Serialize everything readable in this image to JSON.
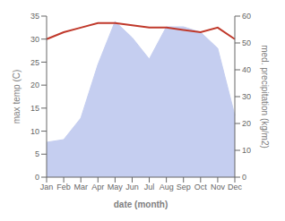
{
  "chart_data": {
    "type": "line",
    "xlabel": "date (month)",
    "ylabel": "max temp (C)",
    "y2label": "med. precipitation (kg/m2)",
    "categories": [
      "Jan",
      "Feb",
      "Mar",
      "Apr",
      "May",
      "Jun",
      "Jul",
      "Aug",
      "Sep",
      "Oct",
      "Nov",
      "Dec"
    ],
    "ylim": [
      0,
      35
    ],
    "yticks": [
      0,
      5,
      10,
      15,
      20,
      25,
      30,
      35
    ],
    "y2lim": [
      0,
      60
    ],
    "y2ticks": [
      0,
      10,
      20,
      30,
      40,
      50,
      60
    ],
    "grid": false,
    "series": [
      {
        "type": "area",
        "axis": "y2",
        "color": "#c5cef0",
        "values": [
          13,
          14,
          22,
          42,
          58,
          52,
          44,
          56,
          56,
          54,
          48,
          23
        ]
      },
      {
        "type": "line",
        "color": "#c0392b",
        "values": [
          30.0,
          31.5,
          32.5,
          33.5,
          33.5,
          33.0,
          32.5,
          32.5,
          32.0,
          31.5,
          32.5,
          30.0
        ]
      }
    ]
  }
}
